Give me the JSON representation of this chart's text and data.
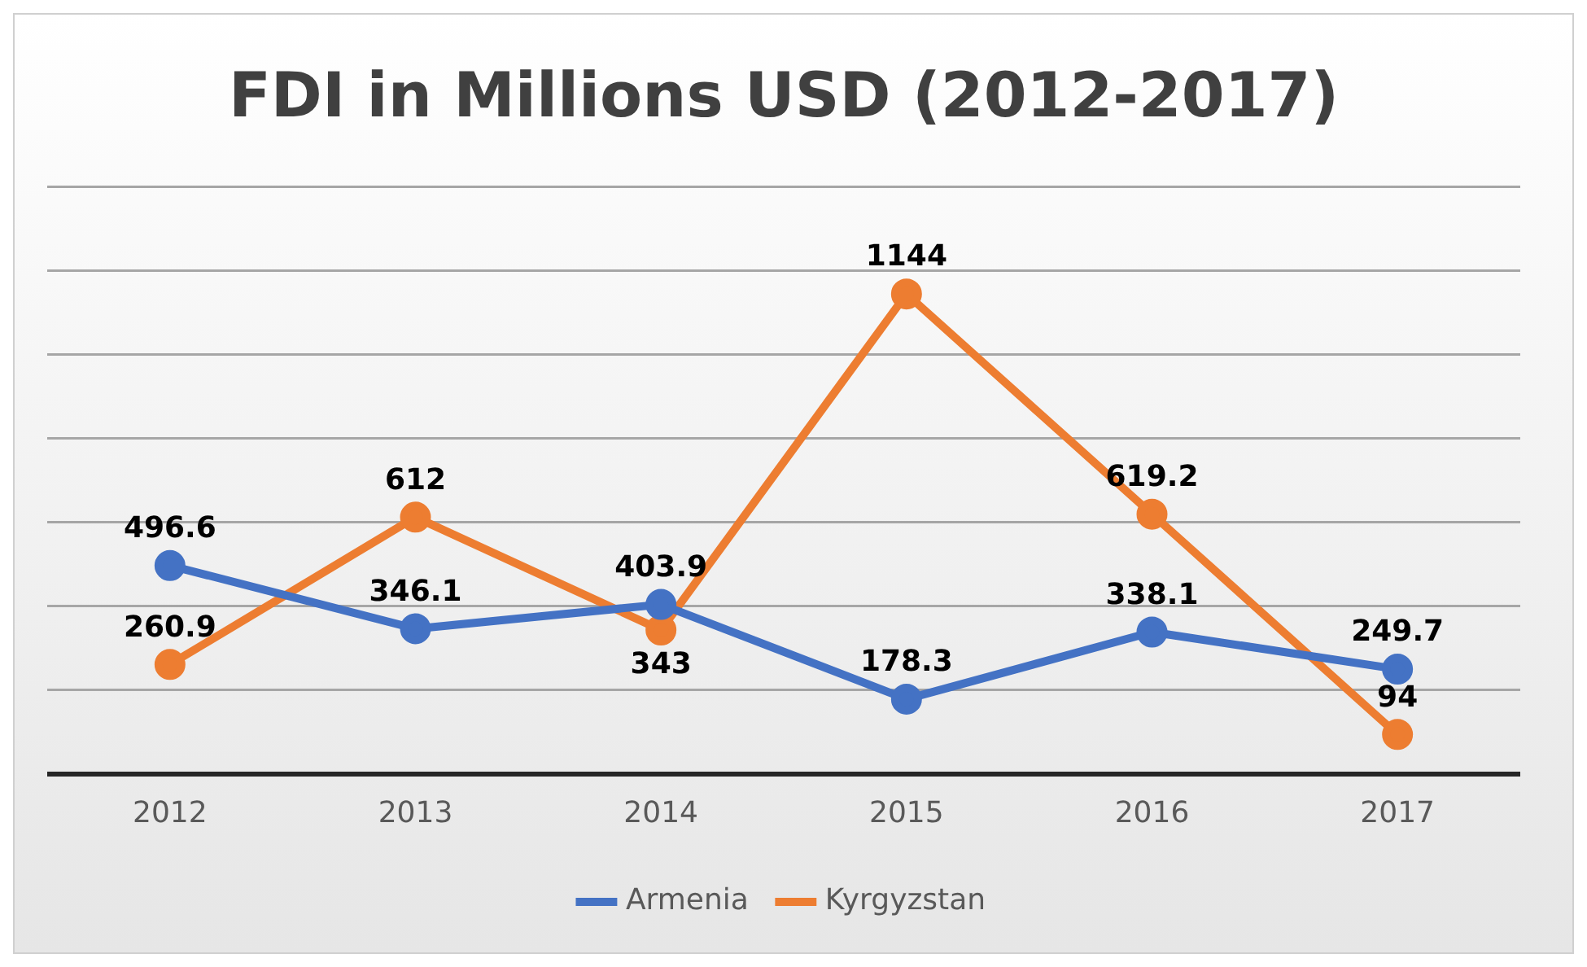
{
  "chart_data": {
    "type": "line",
    "title": "FDI in Millions USD (2012-2017)",
    "categories": [
      "2012",
      "2013",
      "2014",
      "2015",
      "2016",
      "2017"
    ],
    "series": [
      {
        "name": "Armenia",
        "color": "#4472c4",
        "values": [
          496.6,
          346.1,
          403.9,
          178.3,
          338.1,
          249.7
        ]
      },
      {
        "name": "Kyrgyzstan",
        "color": "#ed7d31",
        "values": [
          260.9,
          612,
          343,
          1144,
          619.2,
          94
        ]
      }
    ],
    "ylim": [
      0,
      1400
    ],
    "yticks": [
      {
        "value": 0,
        "label": null
      },
      {
        "value": 200,
        "label": null
      },
      {
        "value": 400,
        "label": null
      },
      {
        "value": 600,
        "label": null
      },
      {
        "value": 800,
        "label": null
      },
      {
        "value": 1000,
        "label": null
      },
      {
        "value": 1200,
        "label": null
      },
      {
        "value": 1400,
        "label": null
      }
    ],
    "tick_labels": "x",
    "grid": "y",
    "legend": "bottom",
    "marker": "circle",
    "line_style": "solid",
    "data_labels": true
  }
}
